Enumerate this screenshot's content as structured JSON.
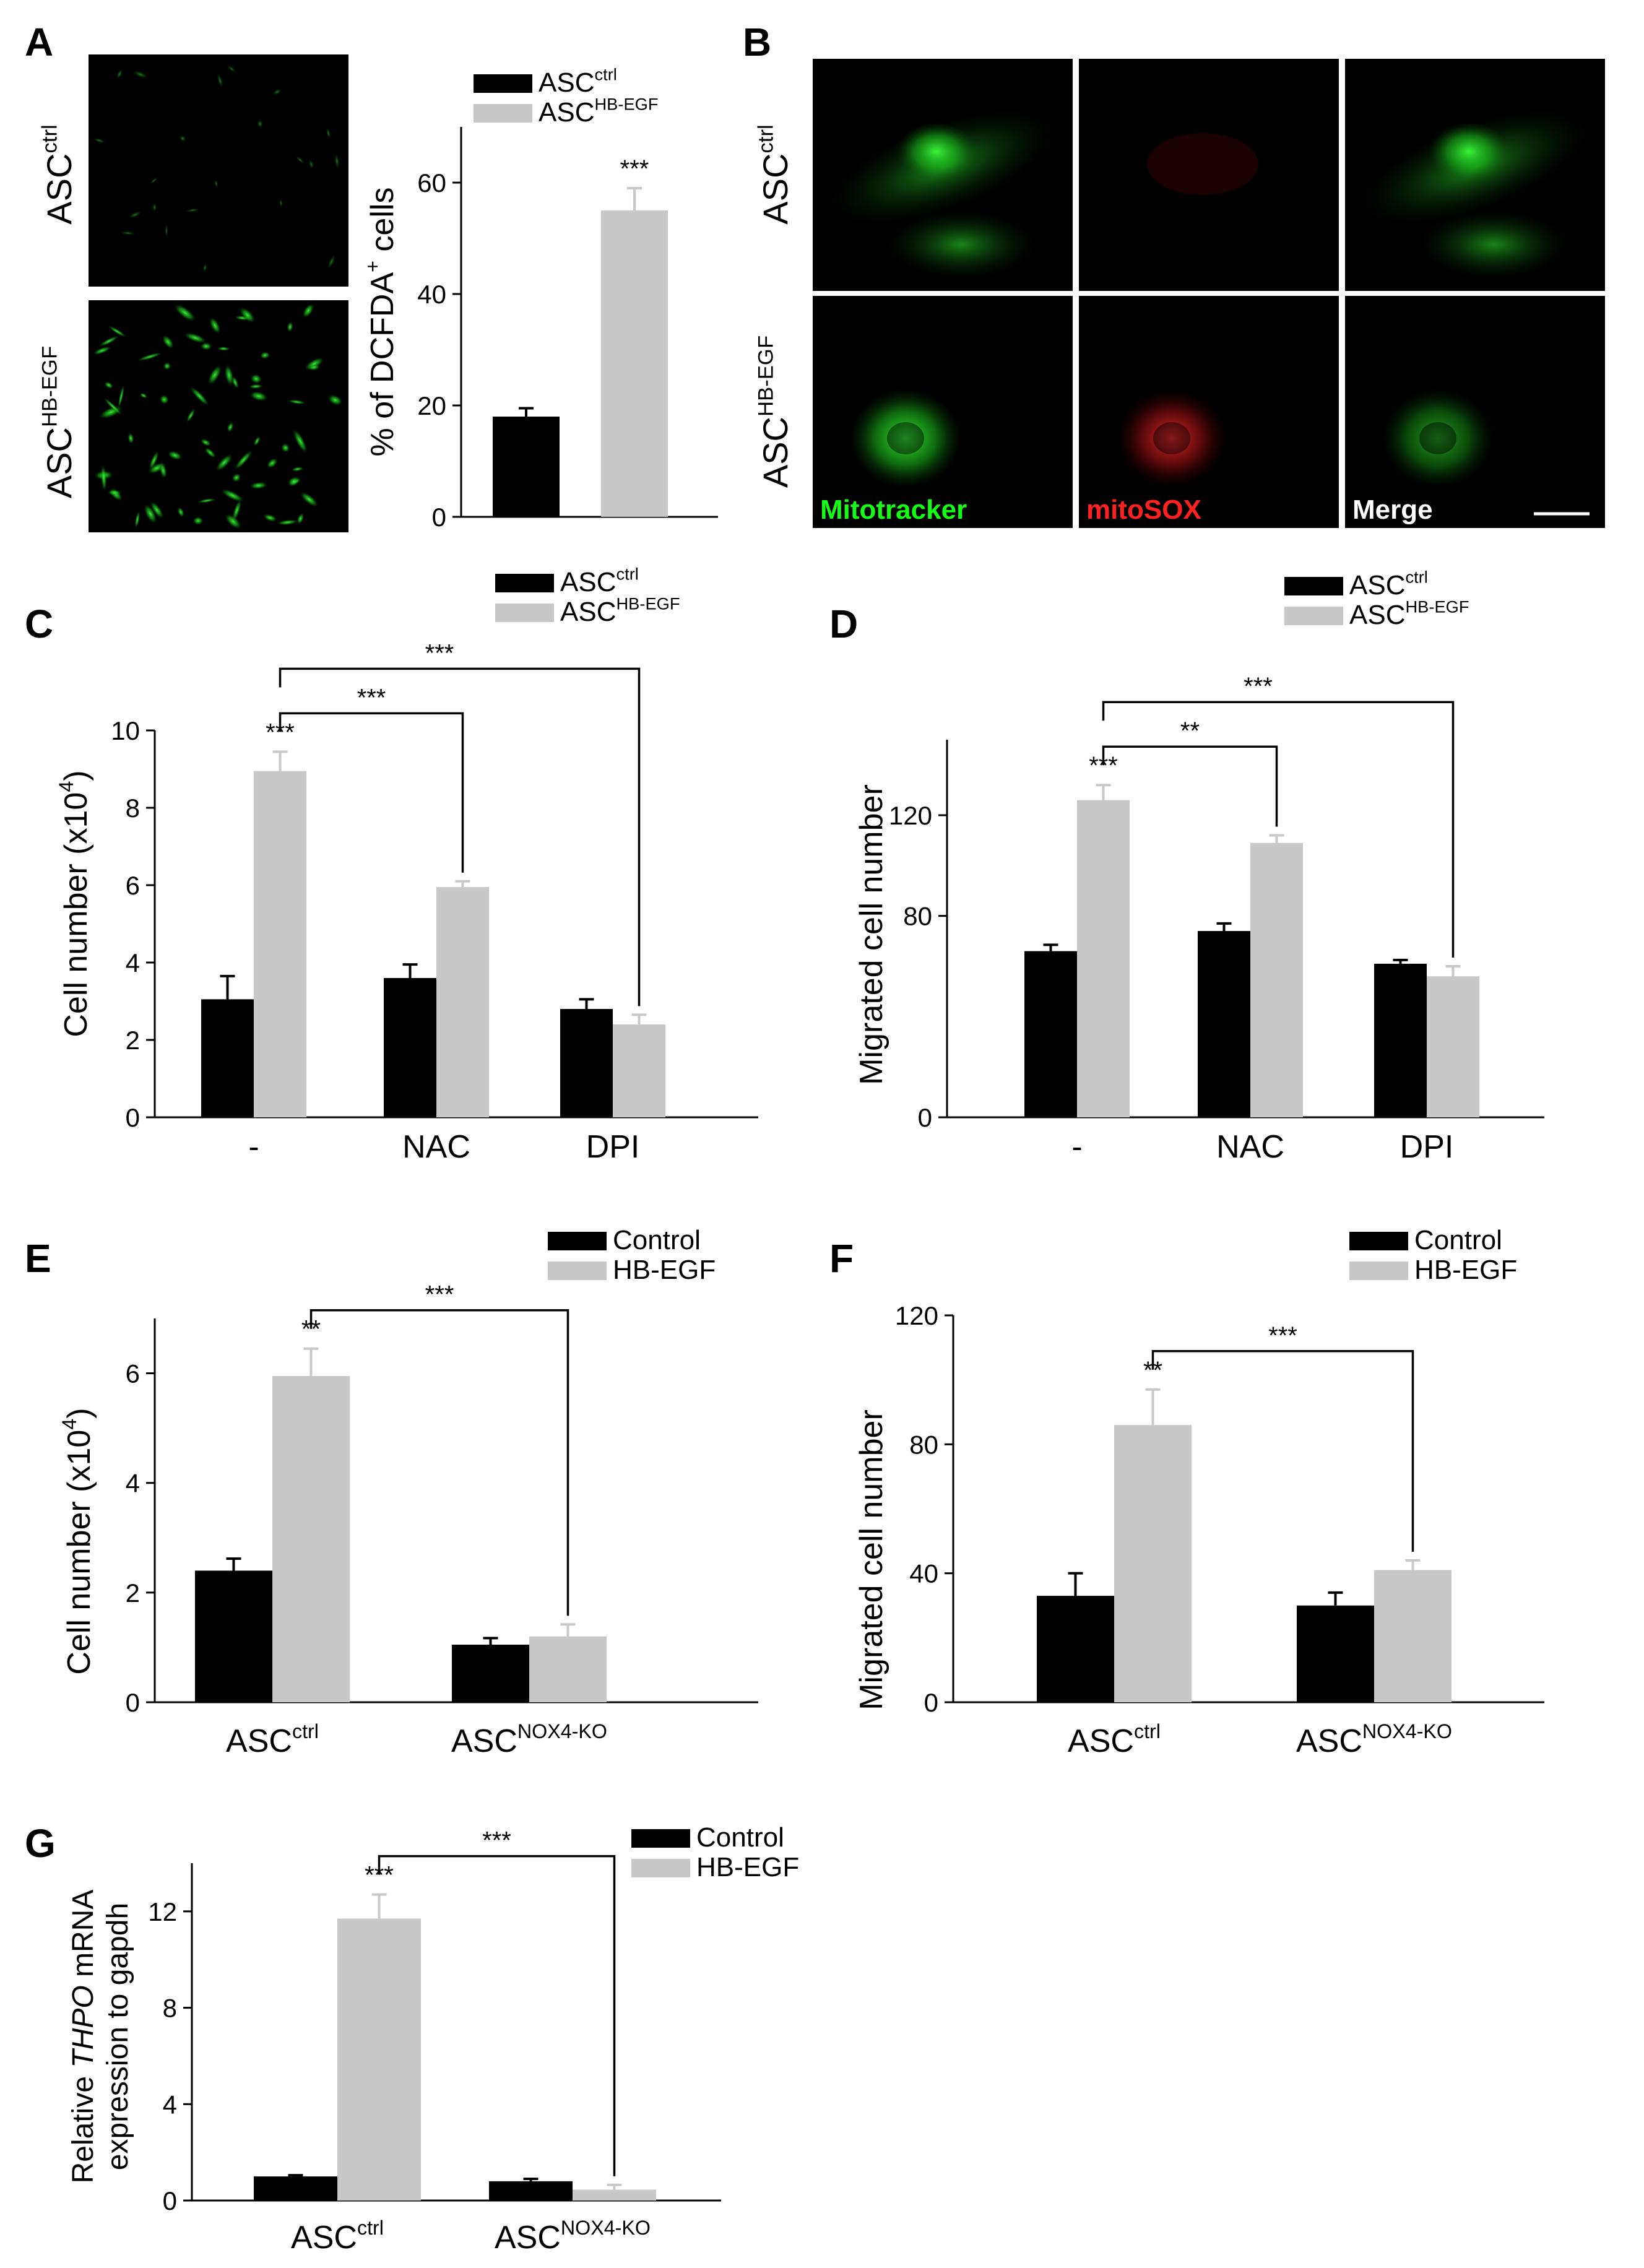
{
  "panel_letters": [
    "A",
    "B",
    "C",
    "D",
    "E",
    "F",
    "G"
  ],
  "colors": {
    "control": "#000000",
    "treated": "#c8c8c8",
    "fluor_green": "#13ff13",
    "fluor_red": "#ff2020"
  },
  "micro_A": {
    "row_labels": [
      {
        "base": "ASC",
        "sup": "ctrl"
      },
      {
        "base": "ASC",
        "sup": "HB-EGF"
      }
    ]
  },
  "micro_B": {
    "row_labels": [
      {
        "base": "ASC",
        "sup": "ctrl"
      },
      {
        "base": "ASC",
        "sup": "HB-EGF"
      }
    ],
    "column_labels": [
      "Mitotracker",
      "mitoSOX",
      "Merge"
    ]
  },
  "chart_data": [
    {
      "panel": "A",
      "type": "bar",
      "ylabel": {
        "pre": "% of DCFDA",
        "sup": "+",
        "post": " cells"
      },
      "ylim": [
        0,
        70
      ],
      "yticks": [
        0,
        20,
        40,
        60
      ],
      "categories": [
        ""
      ],
      "series": [
        {
          "name": {
            "base": "ASC",
            "sup": "ctrl"
          },
          "values": [
            18
          ],
          "errors": [
            1.5
          ]
        },
        {
          "name": {
            "base": "ASC",
            "sup": "HB-EGF"
          },
          "values": [
            55
          ],
          "errors": [
            4
          ]
        }
      ],
      "annotations": [
        {
          "text": "***",
          "series": 1,
          "category": 0
        }
      ],
      "legend": "top"
    },
    {
      "panel": "C",
      "type": "bar",
      "ylabel": {
        "pre": "Cell number (x10",
        "sup": "4",
        "post": ")"
      },
      "ylim": [
        0,
        10
      ],
      "yticks": [
        0,
        2,
        4,
        6,
        8,
        10
      ],
      "categories": [
        "-",
        "NAC",
        "DPI"
      ],
      "series": [
        {
          "name": {
            "base": "ASC",
            "sup": "ctrl"
          },
          "values": [
            3.05,
            3.6,
            2.8
          ],
          "errors": [
            0.6,
            0.35,
            0.25
          ]
        },
        {
          "name": {
            "base": "ASC",
            "sup": "HB-EGF"
          },
          "values": [
            8.95,
            5.95,
            2.4
          ],
          "errors": [
            0.5,
            0.15,
            0.25
          ]
        }
      ],
      "annotations": [
        {
          "text": "***",
          "series": 1,
          "category": 0
        }
      ],
      "brackets": [
        {
          "from": 0,
          "to": 1,
          "text": "***"
        },
        {
          "from": 0,
          "to": 2,
          "text": "***"
        }
      ],
      "legend": "top-right"
    },
    {
      "panel": "D",
      "type": "bar",
      "ylabel": {
        "pre": "Migrated cell number",
        "sup": "",
        "post": ""
      },
      "ylim": [
        0,
        150
      ],
      "yticks": [
        0,
        80,
        120
      ],
      "categories": [
        "-",
        "NAC",
        "DPI"
      ],
      "series": [
        {
          "name": {
            "base": "ASC",
            "sup": "ctrl"
          },
          "values": [
            66,
            74,
            61
          ],
          "errors": [
            2.5,
            3,
            1.5
          ]
        },
        {
          "name": {
            "base": "ASC",
            "sup": "HB-EGF"
          },
          "values": [
            126,
            109,
            56
          ],
          "errors": [
            6,
            3,
            4
          ]
        }
      ],
      "annotations": [
        {
          "text": "***",
          "series": 1,
          "category": 0
        }
      ],
      "brackets": [
        {
          "from": 0,
          "to": 1,
          "text": "**"
        },
        {
          "from": 0,
          "to": 2,
          "text": "***"
        }
      ],
      "legend": "top-right"
    },
    {
      "panel": "E",
      "type": "bar",
      "ylabel": {
        "pre": "Cell number (x10",
        "sup": "4",
        "post": ")"
      },
      "ylim": [
        0,
        7
      ],
      "yticks": [
        0,
        2,
        4,
        6
      ],
      "categories": [
        {
          "base": "ASC",
          "sup": "ctrl"
        },
        {
          "base": "ASC",
          "sup": "NOX4-KO"
        }
      ],
      "series": [
        {
          "name": {
            "base": "Control",
            "sup": ""
          },
          "values": [
            2.4,
            1.05
          ],
          "errors": [
            0.22,
            0.12
          ]
        },
        {
          "name": {
            "base": "HB-EGF",
            "sup": ""
          },
          "values": [
            5.95,
            1.2
          ],
          "errors": [
            0.5,
            0.22
          ]
        }
      ],
      "annotations": [
        {
          "text": "**",
          "series": 1,
          "category": 0
        }
      ],
      "brackets": [
        {
          "from": 0,
          "to": 1,
          "text": "***"
        }
      ],
      "legend": "top-right"
    },
    {
      "panel": "F",
      "type": "bar",
      "ylabel": {
        "pre": "Migrated cell number",
        "sup": "",
        "post": ""
      },
      "ylim": [
        0,
        120
      ],
      "yticks": [
        0,
        40,
        80,
        120
      ],
      "categories": [
        {
          "base": "ASC",
          "sup": "ctrl"
        },
        {
          "base": "ASC",
          "sup": "NOX4-KO"
        }
      ],
      "series": [
        {
          "name": {
            "base": "Control",
            "sup": ""
          },
          "values": [
            33,
            30
          ],
          "errors": [
            7,
            4
          ]
        },
        {
          "name": {
            "base": "HB-EGF",
            "sup": ""
          },
          "values": [
            86,
            41
          ],
          "errors": [
            11,
            3
          ]
        }
      ],
      "annotations": [
        {
          "text": "**",
          "series": 1,
          "category": 0
        }
      ],
      "brackets": [
        {
          "from": 0,
          "to": 1,
          "text": "***"
        }
      ],
      "legend": "top-right"
    },
    {
      "panel": "G",
      "type": "bar",
      "ylabel": {
        "lines": [
          [
            {
              "t": "Relative "
            },
            {
              "t": "THPO",
              "i": true
            },
            {
              "t": " mRNA"
            }
          ],
          [
            {
              "t": "expression to gapdh"
            }
          ]
        ]
      },
      "ylim": [
        0,
        14
      ],
      "yticks": [
        0,
        4,
        8,
        12
      ],
      "categories": [
        {
          "base": "ASC",
          "sup": "ctrl"
        },
        {
          "base": "ASC",
          "sup": "NOX4-KO"
        }
      ],
      "series": [
        {
          "name": {
            "base": "Control",
            "sup": ""
          },
          "values": [
            1.0,
            0.8
          ],
          "errors": [
            0.05,
            0.1
          ]
        },
        {
          "name": {
            "base": "HB-EGF",
            "sup": ""
          },
          "values": [
            11.7,
            0.45
          ],
          "errors": [
            1.0,
            0.2
          ]
        }
      ],
      "annotations": [
        {
          "text": "***",
          "series": 1,
          "category": 0
        }
      ],
      "brackets": [
        {
          "from": 0,
          "to": 1,
          "text": "***"
        }
      ],
      "legend": "top-right"
    }
  ]
}
